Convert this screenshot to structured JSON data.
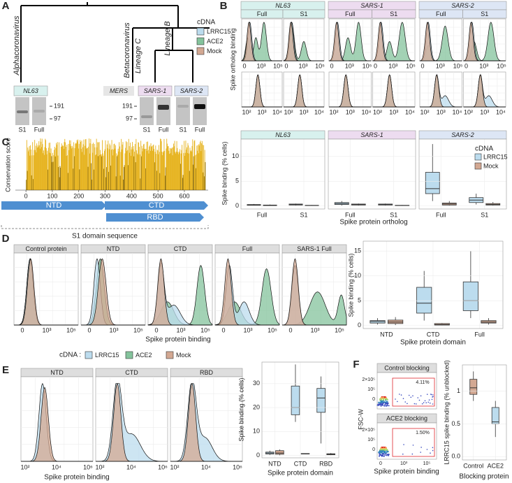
{
  "A": {
    "label": "A",
    "tree": {
      "alpha": "Alphacoronavirus",
      "beta": "Betacoronavirus",
      "lineage_c": "Lineage C",
      "lineage_b": "Lineage B"
    },
    "gels": [
      {
        "title": "NL63",
        "lanes": [
          "S1",
          "Full"
        ],
        "markers": [
          "191",
          "97"
        ]
      },
      {
        "title": "SARS-1",
        "lanes": [
          "S1",
          "Full"
        ],
        "markers": [
          "191",
          "97"
        ]
      },
      {
        "title": "SARS-2",
        "lanes": [
          "S1",
          "Full"
        ]
      }
    ],
    "mers": "MERS"
  },
  "legend": {
    "title": "cDNA",
    "items": [
      "LRRC15",
      "ACE2",
      "Mock"
    ],
    "colors": [
      "#bcdcee",
      "#84c39c",
      "#d3a892"
    ]
  },
  "B": {
    "label": "B",
    "y_label": "Spike ortholog binding",
    "facets": [
      {
        "title": "NL63",
        "subs": [
          "Full",
          "S1"
        ],
        "color": "#d8f1ee"
      },
      {
        "title": "SARS-1",
        "subs": [
          "Full",
          "S1"
        ],
        "color": "#eddcf0"
      },
      {
        "title": "SARS-2",
        "subs": [
          "Full",
          "S1"
        ],
        "color": "#dde6f5"
      }
    ],
    "row1_ticks": [
      "0",
      "10³",
      "10⁵"
    ],
    "row2_ticks": [
      "10²",
      "10³",
      "10⁴"
    ],
    "box": {
      "y_label": "Spike binding (% cells)",
      "x_label": "Spike protein ortholog",
      "ylim": [
        -0.6,
        13.5
      ],
      "yticks": [
        0,
        5,
        10
      ],
      "legend_title": "cDNA",
      "legend": [
        "LRRC15",
        "Mock"
      ],
      "facets": [
        {
          "title": "NL63",
          "categories": [
            "Full",
            "S1"
          ],
          "series": [
            {
              "color": "#bcdcee",
              "boxes": [
                [
                  0.1,
                  0.15,
                  0.2,
                  0.3,
                  0.4
                ],
                [
                  0.1,
                  0.2,
                  0.3,
                  0.4,
                  0.5
                ]
              ]
            },
            {
              "color": "#d3a892",
              "boxes": [
                [
                  0.05,
                  0.1,
                  0.15,
                  0.2,
                  0.3
                ],
                [
                  0,
                  0.05,
                  0.1,
                  0.15,
                  0.2
                ]
              ]
            }
          ]
        },
        {
          "title": "SARS-1",
          "categories": [
            "Full",
            "S1"
          ],
          "series": [
            {
              "color": "#bcdcee",
              "boxes": [
                [
                  0.1,
                  0.3,
                  0.5,
                  0.7,
                  1
                ],
                [
                  0.1,
                  0.2,
                  0.3,
                  0.4,
                  0.5
                ]
              ]
            },
            {
              "color": "#d3a892",
              "boxes": [
                [
                  0.1,
                  0.2,
                  0.3,
                  0.4,
                  0.5
                ],
                [
                  0,
                  0.05,
                  0.1,
                  0.15,
                  0.2
                ]
              ]
            }
          ]
        },
        {
          "title": "SARS-2",
          "categories": [
            "Full",
            "S1"
          ],
          "series": [
            {
              "color": "#bcdcee",
              "boxes": [
                [
                  1,
                  2.5,
                  3.5,
                  6.8,
                  12.5
                ],
                [
                  0.3,
                  0.7,
                  1.2,
                  1.7,
                  2.5
                ]
              ]
            },
            {
              "color": "#d3a892",
              "boxes": [
                [
                  0.1,
                  0.2,
                  0.4,
                  0.6,
                  1
                ],
                [
                  0.1,
                  0.2,
                  0.3,
                  0.5,
                  0.8
                ]
              ]
            }
          ]
        }
      ]
    }
  },
  "C": {
    "label": "C",
    "y_label": "Conservation score",
    "xlim": [
      -40,
      690
    ],
    "xticks": [
      0,
      100,
      200,
      300,
      400,
      500,
      600
    ],
    "domains": [
      "NTD",
      "CTD",
      "RBD"
    ],
    "x_label": "S1 domain sequence"
  },
  "D": {
    "label": "D",
    "facets": [
      "Control protein",
      "NTD",
      "CTD",
      "Full",
      "SARS-1 Full"
    ],
    "xticks": [
      "0",
      "10³",
      "10⁵"
    ],
    "x_label": "Spike protein binding",
    "legend_title": "cDNA :",
    "box": {
      "y_label": "Spike binding (% cells)",
      "x_label": "Spike protein domain",
      "ylim": [
        -0.6,
        17
      ],
      "yticks": [
        0,
        5,
        10,
        15
      ],
      "categories": [
        "NTD",
        "CTD",
        "Full"
      ],
      "series": [
        {
          "color": "#bcdcee",
          "boxes": [
            [
              0.2,
              0.5,
              0.8,
              1,
              1.5
            ],
            [
              1,
              2.5,
              4.5,
              7.7,
              11
            ],
            [
              1.5,
              3,
              5,
              8.8,
              15
            ]
          ]
        },
        {
          "color": "#d3a892",
          "boxes": [
            [
              0.1,
              0.4,
              0.7,
              1.1,
              1.7
            ],
            [
              0,
              0.1,
              0.2,
              0.4,
              0.5
            ],
            [
              0.2,
              0.5,
              0.7,
              1,
              1.5
            ]
          ]
        }
      ]
    }
  },
  "E": {
    "label": "E",
    "facets": [
      "NTD",
      "CTD",
      "RBD"
    ],
    "xticks": [
      "10²",
      "10⁴",
      "10⁶"
    ],
    "x_label": "Spike protein binding",
    "box": {
      "y_label": "Spike binding (% cells)",
      "x_label": "Spike protein domain",
      "ylim": [
        -1,
        39
      ],
      "yticks": [
        0,
        10,
        20,
        30
      ],
      "categories": [
        "NTD",
        "CTD",
        "RBD"
      ],
      "series": [
        {
          "color": "#bcdcee",
          "boxes": [
            [
              0.2,
              0.6,
              1,
              1.4,
              2
            ],
            [
              14,
              17,
              20,
              29,
              38
            ],
            [
              5,
              18,
              24,
              28,
              33
            ]
          ]
        },
        {
          "color": "#d3a892",
          "boxes": [
            [
              0,
              0.5,
              1,
              2,
              2.5
            ],
            [
              0.5,
              0.6,
              0.7,
              0.8,
              0.9
            ],
            [
              0.1,
              0.3,
              0.5,
              0.7,
              1
            ]
          ]
        }
      ]
    }
  },
  "F": {
    "label": "F",
    "panels": [
      {
        "title": "Control blocking",
        "gate": "4.11%"
      },
      {
        "title": "ACE2 blocking",
        "gate": "1.50%"
      }
    ],
    "yticks": [
      "2×10⁵",
      "10⁵",
      "0"
    ],
    "xticks": [
      "0",
      "10³",
      "10⁵"
    ],
    "y_label": "FSC-W",
    "x_label": "Spike protein binding",
    "box": {
      "y_label": "LRRC15 spike binding (% unblocked)",
      "x_label": "Blocking protein",
      "ylim": [
        -0.05,
        1.4
      ],
      "yticks": [
        {
          "value": 0,
          "label": "0.0"
        },
        0.5,
        1
      ],
      "categories": [
        "Control",
        "ACE2"
      ],
      "series": [
        {
          "color": "#d3a892",
          "boxes": [
            [
              0.85,
              0.95,
              1.05,
              1.18,
              1.3
            ],
            null
          ]
        },
        {
          "color": "#bcdcee",
          "boxes": [
            null,
            [
              0.3,
              0.5,
              0.53,
              0.75,
              0.85
            ]
          ]
        }
      ]
    }
  }
}
